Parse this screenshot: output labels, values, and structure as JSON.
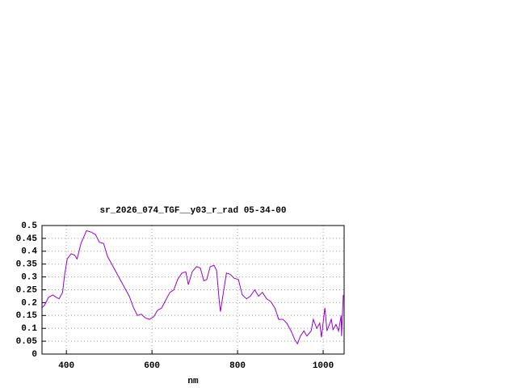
{
  "chart_data": {
    "type": "line",
    "title": "sr_2026_074_TGF__y03_r_rad 05-34-00",
    "x_label": "nm",
    "x": [
      343,
      349,
      358,
      368,
      377,
      383,
      391,
      396,
      402,
      411,
      419,
      425,
      434,
      447,
      457,
      468,
      477,
      487,
      496,
      506,
      519,
      532,
      547,
      557,
      566,
      575,
      585,
      594,
      604,
      613,
      623,
      632,
      642,
      651,
      660,
      670,
      679,
      685,
      694,
      704,
      713,
      721,
      728,
      736,
      745,
      751,
      757,
      760,
      766,
      774,
      783,
      792,
      802,
      811,
      821,
      830,
      840,
      849,
      858,
      868,
      877,
      887,
      896,
      906,
      915,
      925,
      934,
      940,
      947,
      955,
      962,
      972,
      977,
      985,
      992,
      996,
      1004,
      1009,
      1019,
      1023,
      1030,
      1036,
      1042,
      1043,
      1047
    ],
    "series": [
      {
        "color": "#9400d3",
        "values": [
          0.18,
          0.19,
          0.22,
          0.23,
          0.22,
          0.215,
          0.24,
          0.31,
          0.37,
          0.39,
          0.385,
          0.37,
          0.43,
          0.48,
          0.475,
          0.465,
          0.435,
          0.43,
          0.38,
          0.35,
          0.31,
          0.27,
          0.225,
          0.18,
          0.15,
          0.155,
          0.14,
          0.135,
          0.145,
          0.17,
          0.18,
          0.21,
          0.24,
          0.25,
          0.29,
          0.315,
          0.32,
          0.27,
          0.32,
          0.34,
          0.335,
          0.285,
          0.29,
          0.34,
          0.345,
          0.325,
          0.21,
          0.165,
          0.23,
          0.315,
          0.31,
          0.295,
          0.29,
          0.23,
          0.215,
          0.225,
          0.25,
          0.225,
          0.24,
          0.215,
          0.205,
          0.18,
          0.135,
          0.135,
          0.12,
          0.09,
          0.055,
          0.04,
          0.07,
          0.09,
          0.07,
          0.09,
          0.135,
          0.1,
          0.12,
          0.065,
          0.18,
          0.09,
          0.135,
          0.095,
          0.115,
          0.09,
          0.15,
          0.07,
          0.23
        ]
      }
    ],
    "xlim": [
      343,
      1049
    ],
    "ylim": [
      0,
      0.5
    ],
    "xticks": [
      400,
      600,
      800,
      1000
    ],
    "yticks": [
      0,
      0.05,
      0.1,
      0.15,
      0.2,
      0.25,
      0.3,
      0.35,
      0.4,
      0.45,
      0.5
    ],
    "grid": true
  }
}
